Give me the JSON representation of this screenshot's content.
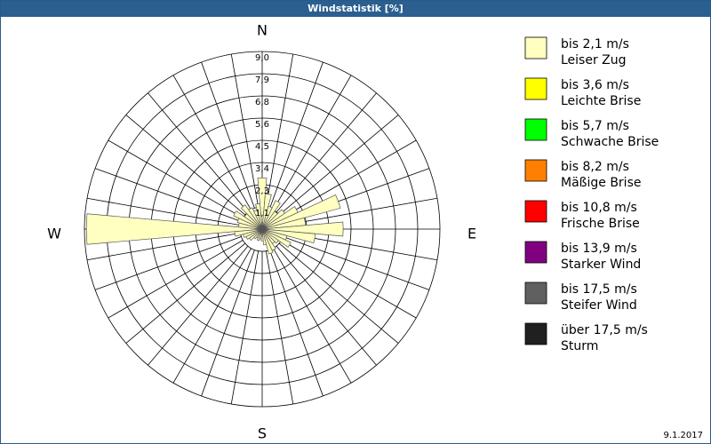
{
  "chart_data": {
    "type": "windrose",
    "title": "Windstatistik [%]",
    "directions": [
      "N",
      "E",
      "S",
      "W"
    ],
    "series": [
      {
        "name": "bis 2,1 m/s",
        "description": "Leiser Zug",
        "color": "#ffffc0",
        "values": [
          2.6,
          1.8,
          1.2,
          1.6,
          1.1,
          1.4,
          2.0,
          4.1,
          2.2,
          4.1,
          2.7,
          1.3,
          1.6,
          1.0,
          0.9,
          1.2,
          1.3,
          0.8,
          0.6,
          0.5,
          0.6,
          0.5,
          0.6,
          0.8,
          0.9,
          1.0,
          1.4,
          8.9,
          1.2,
          1.3,
          1.6,
          1.1,
          1.5,
          1.2,
          1.0,
          1.3
        ]
      },
      {
        "name": "bis 3,6 m/s",
        "description": "Leichte Brise",
        "color": "#ffff00"
      },
      {
        "name": "bis 5,7 m/s",
        "description": "Schwache Brise",
        "color": "#00ff00"
      },
      {
        "name": "bis 8,2 m/s",
        "description": "Mäßige Brise",
        "color": "#ff8000"
      },
      {
        "name": "bis 10,8 m/s",
        "description": "Frische Brise",
        "color": "#ff0000"
      },
      {
        "name": "bis 13,9 m/s",
        "description": "Starker Wind",
        "color": "#800080"
      },
      {
        "name": "bis 17,5 m/s",
        "description": "Steifer Wind",
        "color": "#606060"
      },
      {
        "name": "über 17,5 m/s",
        "description": "Sturm",
        "color": "#202020"
      }
    ],
    "rlim": [
      0,
      9
    ],
    "rticks": [
      {
        "value": 1.125,
        "label": "1,1"
      },
      {
        "value": 2.25,
        "label": "2,3"
      },
      {
        "value": 3.375,
        "label": "3,4"
      },
      {
        "value": 4.5,
        "label": "4,5"
      },
      {
        "value": 5.625,
        "label": "5,6"
      },
      {
        "value": 6.75,
        "label": "6,8"
      },
      {
        "value": 7.875,
        "label": "7,9"
      },
      {
        "value": 9,
        "label": "9,0"
      }
    ],
    "date": "9.1.2017"
  }
}
